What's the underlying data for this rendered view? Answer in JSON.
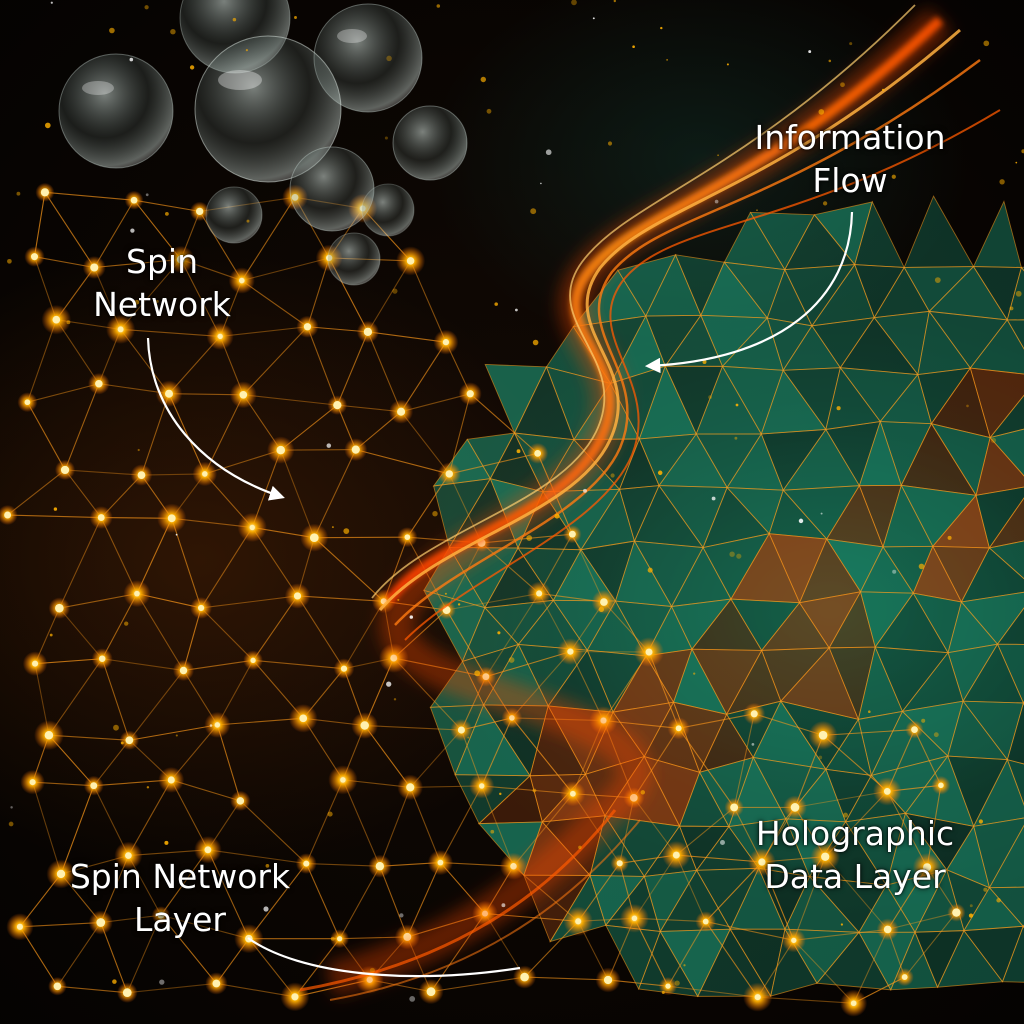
{
  "labels": {
    "spin_network": [
      "Spin",
      "Network"
    ],
    "information_flow": [
      "Information",
      "Flow"
    ],
    "spin_network_layer": [
      "Spin Network",
      "Layer"
    ],
    "holographic_data_layer": [
      "Holographic",
      "Data Layer"
    ]
  },
  "colors": {
    "node_glow": "#ffb000",
    "edge_orange": "#ff9a1a",
    "flow_orange": "#ff5a00",
    "holographic_teal": "#1f9d7a",
    "holographic_amber": "#c2561a",
    "arrow_white": "#ffffff"
  }
}
